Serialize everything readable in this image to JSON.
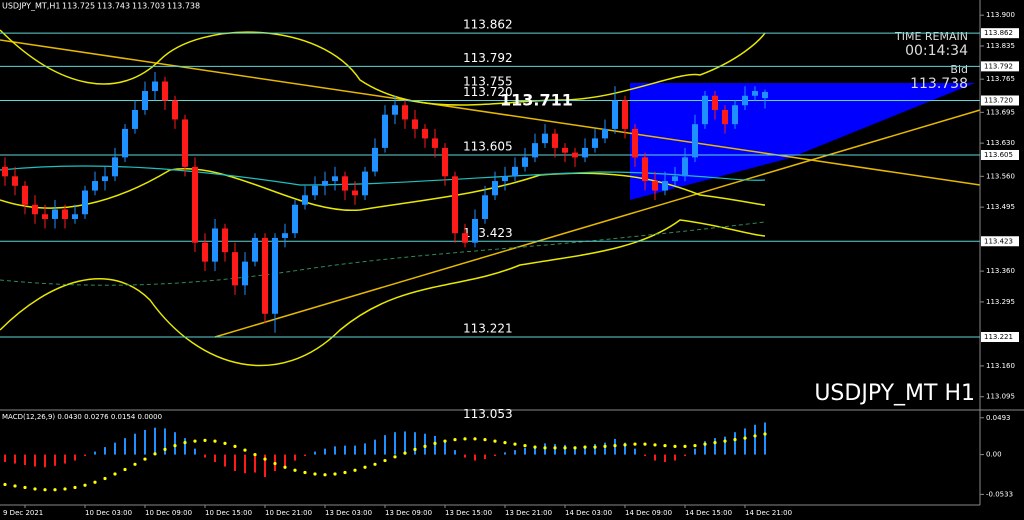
{
  "chart_data": [
    {
      "type": "candlestick",
      "symbol": "USDJPY_MT,H1",
      "watermark": "USDJPY_MT H1",
      "timer_title": "TIME REMAIN",
      "timer": "00:14:34",
      "bid_title": "Bid",
      "categories": [
        null,
        null,
        "9 Dec 2021",
        null,
        null,
        null,
        null,
        null,
        "10 Dec 03:00",
        null,
        null,
        null,
        null,
        null,
        "10 Dec 09:00",
        null,
        null,
        null,
        null,
        null,
        "10 Dec 15:00",
        null,
        null,
        null,
        null,
        null,
        "10 Dec 21:00",
        null,
        null,
        null,
        null,
        null,
        "13 Dec 03:00",
        null,
        null,
        null,
        null,
        null,
        "13 Dec 09:00",
        null,
        null,
        null,
        null,
        null,
        "13 Dec 15:00",
        null,
        null,
        null,
        null,
        null,
        "13 Dec 21:00",
        null,
        null,
        null,
        null,
        null,
        "14 Dec 03:00",
        null,
        null,
        null,
        null,
        null,
        "14 Dec 09:00",
        null,
        null,
        null,
        null,
        null,
        "14 Dec 15:00",
        null,
        null,
        null,
        null,
        null,
        "14 Dec 21:00",
        null,
        null
      ],
      "open": [
        113.58,
        113.56,
        113.54,
        113.5,
        113.48,
        113.47,
        113.49,
        113.47,
        113.48,
        113.53,
        113.55,
        113.56,
        113.6,
        113.66,
        113.7,
        113.74,
        113.76,
        113.72,
        113.68,
        113.58,
        113.42,
        113.38,
        113.45,
        113.4,
        113.33,
        113.38,
        113.43,
        113.27,
        113.43,
        113.44,
        113.5,
        113.52,
        113.54,
        113.55,
        113.56,
        113.53,
        113.52,
        113.57,
        113.62,
        113.69,
        113.71,
        113.68,
        113.66,
        113.64,
        113.62,
        113.56,
        113.44,
        113.42,
        113.47,
        113.52,
        113.55,
        113.56,
        113.58,
        113.6,
        113.63,
        113.65,
        113.62,
        113.61,
        113.6,
        113.62,
        113.64,
        113.66,
        113.72,
        113.66,
        113.6,
        113.55,
        113.53,
        113.55,
        113.56,
        113.6,
        113.67,
        113.73,
        113.7,
        113.67,
        113.71,
        113.73,
        113.725
      ],
      "high": [
        113.6,
        113.58,
        113.55,
        113.52,
        113.5,
        113.51,
        113.5,
        113.5,
        113.54,
        113.57,
        113.58,
        113.62,
        113.67,
        113.72,
        113.76,
        113.78,
        113.77,
        113.73,
        113.69,
        113.6,
        113.44,
        113.47,
        113.46,
        113.42,
        113.4,
        113.44,
        113.44,
        113.44,
        113.46,
        113.51,
        113.54,
        113.56,
        113.57,
        113.58,
        113.57,
        113.55,
        113.58,
        113.64,
        113.71,
        113.73,
        113.72,
        113.7,
        113.67,
        113.66,
        113.63,
        113.57,
        113.46,
        113.49,
        113.54,
        113.57,
        113.58,
        113.6,
        113.62,
        113.65,
        113.67,
        113.66,
        113.63,
        113.62,
        113.64,
        113.66,
        113.68,
        113.75,
        113.73,
        113.67,
        113.61,
        113.57,
        113.57,
        113.58,
        113.62,
        113.69,
        113.74,
        113.74,
        113.71,
        113.72,
        113.75,
        113.75,
        113.743
      ],
      "low": [
        113.54,
        113.52,
        113.48,
        113.46,
        113.45,
        113.45,
        113.45,
        113.46,
        113.47,
        113.52,
        113.53,
        113.55,
        113.59,
        113.65,
        113.69,
        113.72,
        113.7,
        113.66,
        113.56,
        113.4,
        113.36,
        113.36,
        113.38,
        113.31,
        113.31,
        113.37,
        113.25,
        113.23,
        113.41,
        113.43,
        113.49,
        113.51,
        113.52,
        113.53,
        113.51,
        113.5,
        113.51,
        113.56,
        113.61,
        113.67,
        113.66,
        113.64,
        113.62,
        113.6,
        113.54,
        113.42,
        113.41,
        113.41,
        113.46,
        113.51,
        113.53,
        113.55,
        113.57,
        113.59,
        113.62,
        113.6,
        113.59,
        113.58,
        113.59,
        113.61,
        113.63,
        113.65,
        113.64,
        113.58,
        113.53,
        113.51,
        113.52,
        113.54,
        113.55,
        113.59,
        113.66,
        113.68,
        113.65,
        113.66,
        113.7,
        113.72,
        113.703
      ],
      "close": [
        113.56,
        113.54,
        113.5,
        113.48,
        113.47,
        113.49,
        113.47,
        113.48,
        113.53,
        113.55,
        113.56,
        113.6,
        113.66,
        113.7,
        113.74,
        113.76,
        113.72,
        113.68,
        113.58,
        113.42,
        113.38,
        113.45,
        113.4,
        113.33,
        113.38,
        113.43,
        113.27,
        113.43,
        113.44,
        113.5,
        113.52,
        113.54,
        113.55,
        113.56,
        113.53,
        113.52,
        113.57,
        113.62,
        113.69,
        113.71,
        113.68,
        113.66,
        113.64,
        113.62,
        113.56,
        113.44,
        113.42,
        113.47,
        113.52,
        113.55,
        113.56,
        113.58,
        113.6,
        113.63,
        113.65,
        113.62,
        113.61,
        113.6,
        113.62,
        113.64,
        113.66,
        113.72,
        113.66,
        113.6,
        113.55,
        113.53,
        113.55,
        113.56,
        113.6,
        113.67,
        113.73,
        113.7,
        113.67,
        113.71,
        113.73,
        113.74,
        113.738
      ],
      "up_color": "#1e90ff",
      "down_color": "#ff1a1a",
      "levels": [
        113.862,
        113.792,
        {
          "value": 113.72,
          "label": "113.720"
        },
        113.605,
        113.423,
        113.221
      ],
      "level_color": "#5fd6d6",
      "level_labels": [
        113.755,
        113.053
      ],
      "trend_label": 113.711,
      "ylim": [
        113.067,
        113.932
      ],
      "yticks": [
        {
          "value": 113.9,
          "label": "113.900"
        },
        113.835,
        113.765,
        113.695,
        {
          "value": 113.63,
          "label": "113.630"
        },
        {
          "value": 113.56,
          "label": "113.560"
        },
        113.495,
        {
          "value": 113.36,
          "label": "113.360"
        },
        113.295,
        {
          "value": 113.16,
          "label": "113.160"
        },
        113.095
      ]
    },
    {
      "type": "macd",
      "title": "MACD(12,26,9) 0.0430 0.0276 0.0154 0.0000",
      "histogram": [
        -0.01,
        -0.012,
        -0.014,
        -0.016,
        -0.017,
        -0.015,
        -0.012,
        -0.008,
        -0.002,
        0.004,
        0.01,
        0.016,
        0.022,
        0.028,
        0.033,
        0.036,
        0.035,
        0.03,
        0.022,
        0.008,
        -0.004,
        -0.01,
        -0.016,
        -0.022,
        -0.025,
        -0.024,
        -0.03,
        -0.022,
        -0.016,
        -0.008,
        -0.002,
        0.004,
        0.008,
        0.011,
        0.012,
        0.012,
        0.015,
        0.02,
        0.026,
        0.03,
        0.031,
        0.03,
        0.028,
        0.025,
        0.018,
        0.006,
        -0.004,
        -0.008,
        -0.006,
        -0.002,
        0.003,
        0.006,
        0.009,
        0.012,
        0.015,
        0.014,
        0.013,
        0.011,
        0.012,
        0.014,
        0.016,
        0.021,
        0.016,
        0.008,
        -0.002,
        -0.008,
        -0.01,
        -0.008,
        -0.002,
        0.008,
        0.018,
        0.022,
        0.024,
        0.03,
        0.035,
        0.04,
        0.043
      ],
      "signal": [
        -0.04,
        -0.042,
        -0.044,
        -0.046,
        -0.047,
        -0.047,
        -0.046,
        -0.044,
        -0.041,
        -0.037,
        -0.032,
        -0.026,
        -0.02,
        -0.013,
        -0.006,
        0.001,
        0.007,
        0.012,
        0.016,
        0.018,
        0.019,
        0.018,
        0.015,
        0.011,
        0.006,
        0.0,
        -0.006,
        -0.012,
        -0.017,
        -0.021,
        -0.024,
        -0.026,
        -0.027,
        -0.026,
        -0.024,
        -0.021,
        -0.017,
        -0.013,
        -0.008,
        -0.003,
        0.002,
        0.007,
        0.011,
        0.015,
        0.018,
        0.02,
        0.021,
        0.021,
        0.02,
        0.018,
        0.016,
        0.014,
        0.012,
        0.01,
        0.009,
        0.009,
        0.009,
        0.009,
        0.01,
        0.01,
        0.011,
        0.012,
        0.013,
        0.014,
        0.014,
        0.013,
        0.012,
        0.011,
        0.011,
        0.012,
        0.014,
        0.016,
        0.018,
        0.02,
        0.022,
        0.025,
        0.0276
      ],
      "up_color": "#1e90ff",
      "down_color": "#ff1a1a",
      "signal_color": "#ffff00",
      "ylim": [
        -0.0675,
        0.0597
      ],
      "yticks": [
        0.0493,
        {
          "value": 0,
          "label": "0.00"
        },
        -0.0533
      ]
    }
  ]
}
